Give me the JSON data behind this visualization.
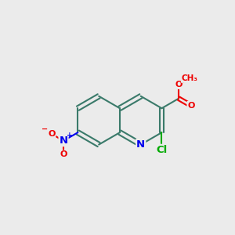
{
  "bg_color": "#ebebeb",
  "bond_color": "#3a7a6a",
  "bond_width": 1.5,
  "atom_colors": {
    "N": "#0000ee",
    "O": "#ee0000",
    "Cl": "#00aa00",
    "C": "#3a7a6a"
  },
  "font_size": 9.5,
  "font_size_small": 8.0,
  "font_size_ch3": 7.5
}
